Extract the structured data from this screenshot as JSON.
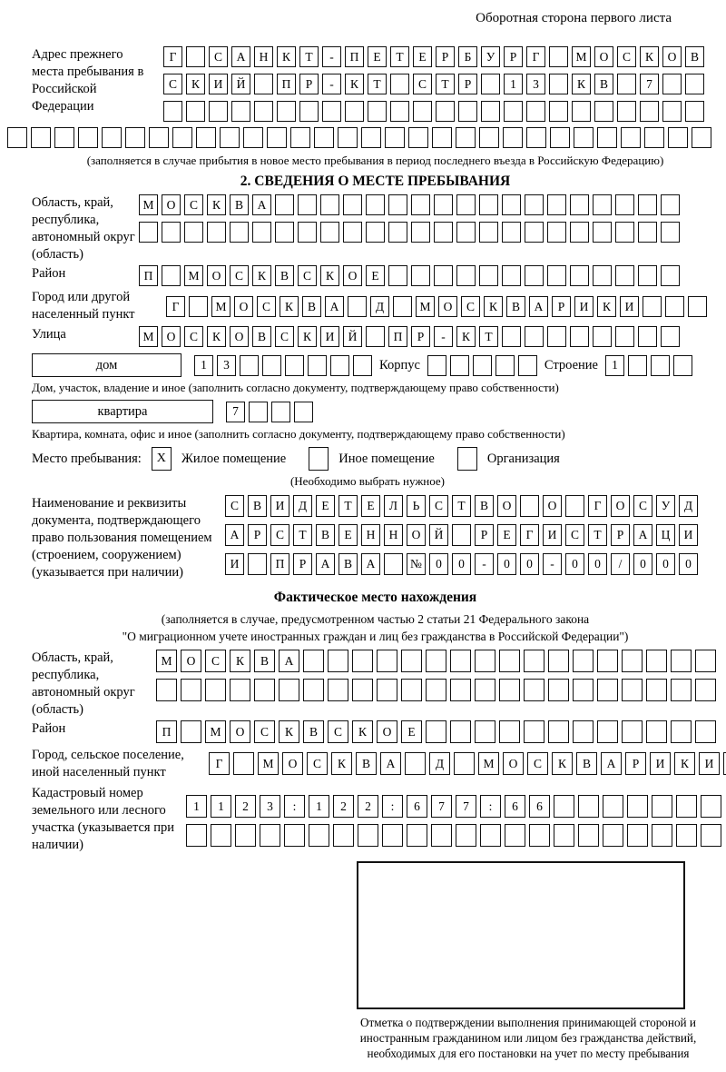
{
  "page": {
    "corner_note": "Оборотная сторона первого листа"
  },
  "prev_address": {
    "label": "Адрес прежнего места пребывания в Российской Федерации",
    "rows": [
      {
        "text": "Г САНКТ-ПЕТЕРБУРГ МОСКОВ",
        "len": 24
      },
      {
        "text": "СКИЙ ПР-КТ СТР 13 КВ 7",
        "len": 24
      },
      {
        "text": "",
        "len": 24
      }
    ],
    "overflow_row": {
      "text": "",
      "len": 30
    },
    "note": "(заполняется в случае прибытия в новое место пребывания в период последнего въезда в Российскую Федерацию)"
  },
  "section2": {
    "title": "2. СВЕДЕНИЯ О МЕСТЕ ПРЕБЫВАНИЯ",
    "region": {
      "label": "Область, край, республика, автономный округ (область)",
      "rows": [
        {
          "text": "МОСКВА",
          "len": 24
        },
        {
          "text": "",
          "len": 24
        }
      ]
    },
    "district": {
      "label": "Район",
      "row": {
        "text": "П МОСКВСКОЕ",
        "len": 24
      }
    },
    "city": {
      "label": "Город или другой населенный пункт",
      "row": {
        "text": "Г МОСКВА Д МОСКВАРИКИ",
        "len": 24
      }
    },
    "street": {
      "label": "Улица",
      "row": {
        "text": "МОСКОВСКИЙ ПР-КТ",
        "len": 24
      }
    },
    "house": {
      "box_label": "дом",
      "row": {
        "text": "13",
        "len": 8
      },
      "korpus_label": "Корпус",
      "korpus_row": {
        "text": "",
        "len": 5
      },
      "stroenie_label": "Строение",
      "stroenie_row": {
        "text": "1",
        "len": 4
      },
      "note": "Дом, участок, владение и иное (заполнить согласно документу, подтверждающему право собственности)"
    },
    "apartment": {
      "box_label": "квартира",
      "row": {
        "text": "7",
        "len": 4
      },
      "note": "Квартира, комната, офис и иное (заполнить согласно документу, подтверждающему право собственности)"
    },
    "stay_type": {
      "label": "Место пребывания:",
      "options": [
        {
          "label": "Жилое помещение",
          "mark": {
            "text": "X",
            "len": 1
          }
        },
        {
          "label": "Иное помещение",
          "mark": {
            "text": "",
            "len": 1
          }
        },
        {
          "label": "Организация",
          "mark": {
            "text": "",
            "len": 1
          }
        }
      ],
      "note": "(Необходимо выбрать нужное)"
    },
    "document": {
      "label": "Наименование и реквизиты документа, подтверждающего право пользования помещением (строением, сооружением) (указывается при наличии)",
      "rows": [
        {
          "text": "СВИДЕТЕЛЬСТВО О ГОСУД",
          "len": 21
        },
        {
          "text": "АРСТВЕННОЙ РЕГИСТРАЦИ",
          "len": 21
        },
        {
          "text": "И ПРАВА №00-00-00/000",
          "len": 21
        }
      ]
    }
  },
  "actual_location": {
    "title": "Фактическое место нахождения",
    "note_lines": [
      "(заполняется в случае, предусмотренном частью 2 статьи 21 Федерального закона",
      "\"О миграционном учете иностранных граждан и лиц без гражданства в Российской Федерации\")"
    ],
    "region": {
      "label": "Область, край, республика, автономный округ (область)",
      "rows": [
        {
          "text": "МОСКВА",
          "len": 23
        },
        {
          "text": "",
          "len": 23
        }
      ]
    },
    "district": {
      "label": "Район",
      "row": {
        "text": "П МОСКВСКОЕ",
        "len": 23
      }
    },
    "city": {
      "label": "Город, сельское поселение, иной населенный пункт",
      "row": {
        "text": "Г МОСКВА Д МОСКВАРИКИ",
        "len": 22
      }
    },
    "cadastral": {
      "label": "Кадастровый номер земельного или лесного участка (указывается при наличии)",
      "rows": [
        {
          "text": "1123:122:677:66",
          "len": 22
        },
        {
          "text": "",
          "len": 22
        }
      ]
    }
  },
  "confirmation": {
    "caption": "Отметка о подтверждении выполнения принимающей стороной и иностранным гражданином или лицом без гражданства действий, необходимых для его постановки на учет по месту пребывания"
  }
}
